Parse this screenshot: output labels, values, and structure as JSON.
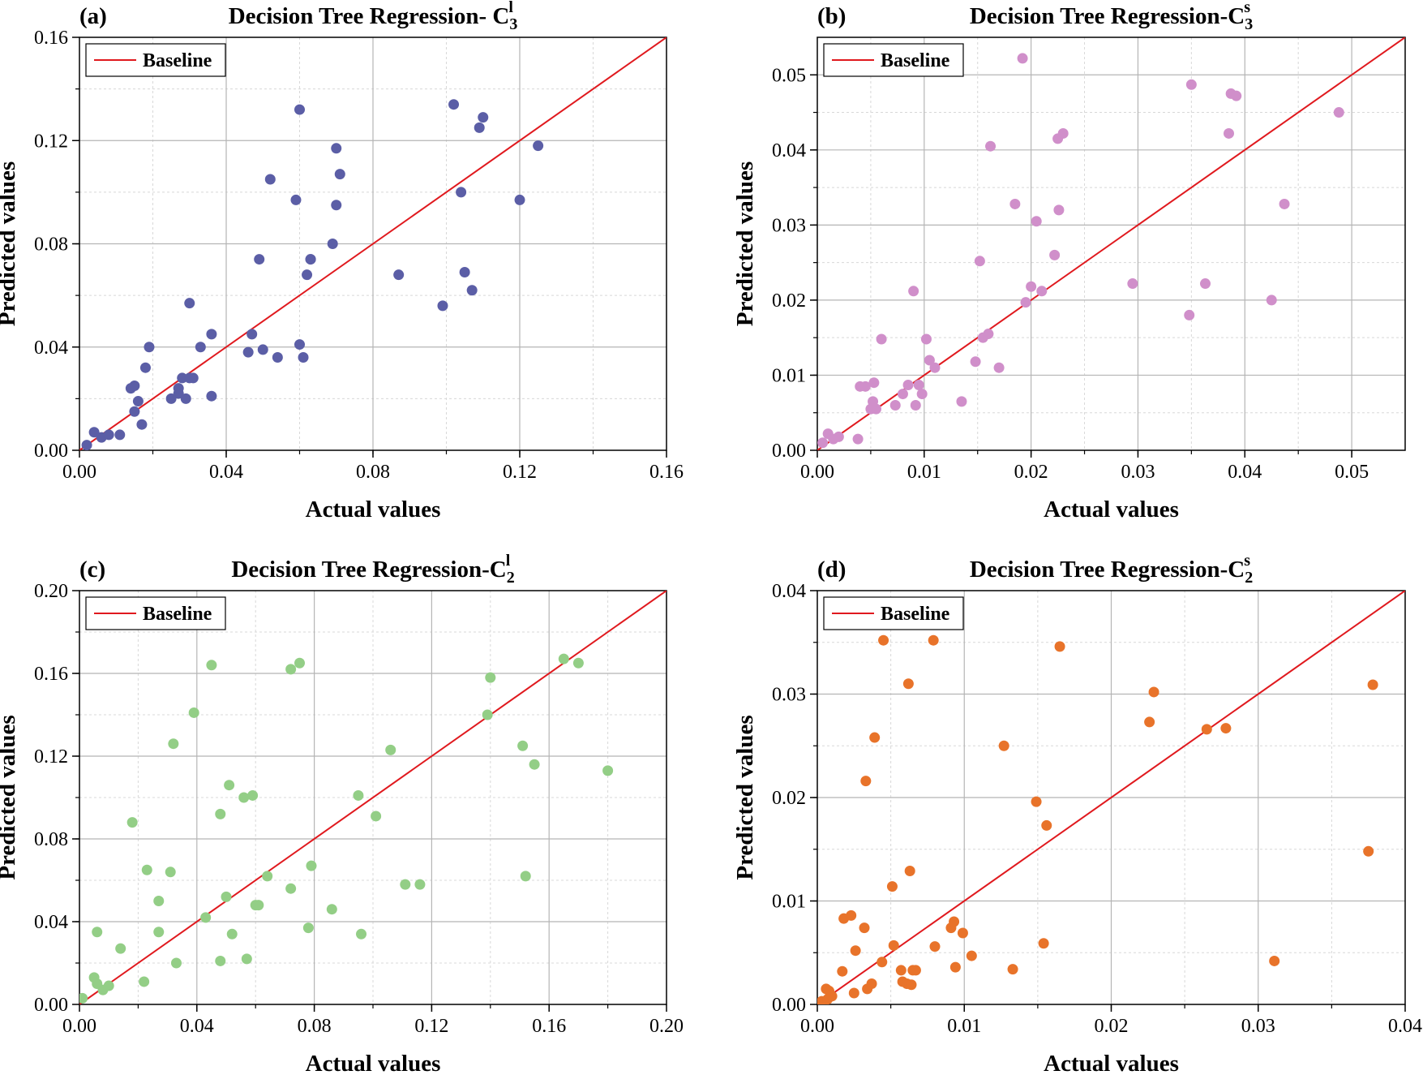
{
  "figure": {
    "colors": {
      "baseline": "#e0191e",
      "grid_major": "#b5b5b5",
      "grid_minor": "#d8d8d8",
      "axis": "#000000"
    }
  },
  "chart_data": [
    {
      "type": "scatter",
      "panel_label": "(a)",
      "title": "Decision Tree Regression- C",
      "title_sub": "3",
      "title_sup": "l",
      "xlabel": "Actual values",
      "ylabel": "Predicted values",
      "xlim": [
        0,
        0.16
      ],
      "ylim": [
        0,
        0.16
      ],
      "xticks": [
        0,
        0.04,
        0.08,
        0.12,
        0.16
      ],
      "yticks": [
        0,
        0.04,
        0.08,
        0.12,
        0.16
      ],
      "tick_labels_x": [
        "0.00",
        "0.04",
        "0.08",
        "0.12",
        "0.16"
      ],
      "tick_labels_y": [
        "0.00",
        "0.04",
        "0.08",
        "0.12",
        "0.16"
      ],
      "minor_step": 0.02,
      "grid": true,
      "legend": {
        "label": "Baseline",
        "position": "top-left"
      },
      "point_color": "#5b5ea6",
      "baseline": {
        "from": [
          0,
          0
        ],
        "to": [
          0.16,
          0.16
        ]
      },
      "x": [
        0.002,
        0.004,
        0.006,
        0.008,
        0.011,
        0.014,
        0.015,
        0.015,
        0.016,
        0.017,
        0.018,
        0.019,
        0.025,
        0.027,
        0.027,
        0.028,
        0.029,
        0.03,
        0.031,
        0.03,
        0.033,
        0.036,
        0.036,
        0.046,
        0.047,
        0.049,
        0.05,
        0.052,
        0.054,
        0.059,
        0.06,
        0.06,
        0.061,
        0.062,
        0.063,
        0.063,
        0.069,
        0.07,
        0.07,
        0.071,
        0.087,
        0.099,
        0.102,
        0.104,
        0.105,
        0.107,
        0.109,
        0.11,
        0.12,
        0.125
      ],
      "y": [
        0.002,
        0.007,
        0.005,
        0.006,
        0.006,
        0.024,
        0.015,
        0.025,
        0.019,
        0.01,
        0.032,
        0.04,
        0.02,
        0.022,
        0.024,
        0.028,
        0.02,
        0.057,
        0.028,
        0.028,
        0.04,
        0.021,
        0.045,
        0.038,
        0.045,
        0.074,
        0.039,
        0.105,
        0.036,
        0.097,
        0.041,
        0.132,
        0.036,
        0.068,
        0.074,
        0.074,
        0.08,
        0.095,
        0.117,
        0.107,
        0.068,
        0.056,
        0.134,
        0.1,
        0.069,
        0.062,
        0.125,
        0.129,
        0.097,
        0.118
      ]
    },
    {
      "type": "scatter",
      "panel_label": "(b)",
      "title": "Decision Tree Regression-C",
      "title_sub": "3",
      "title_sup": "s",
      "xlabel": "Actual values",
      "ylabel": "Predicted values",
      "xlim": [
        0,
        0.055
      ],
      "ylim": [
        0,
        0.055
      ],
      "xticks": [
        0,
        0.01,
        0.02,
        0.03,
        0.04,
        0.05
      ],
      "yticks": [
        0,
        0.01,
        0.02,
        0.03,
        0.04,
        0.05
      ],
      "tick_labels_x": [
        "0.00",
        "0.01",
        "0.02",
        "0.03",
        "0.04",
        "0.05"
      ],
      "tick_labels_y": [
        "0.00",
        "0.01",
        "0.02",
        "0.03",
        "0.04",
        "0.05"
      ],
      "minor_step": 0.005,
      "grid": true,
      "legend": {
        "label": "Baseline",
        "position": "top-left"
      },
      "point_color": "#d08fca",
      "baseline": {
        "from": [
          0,
          0
        ],
        "to": [
          0.055,
          0.055
        ]
      },
      "x": [
        0.0005,
        0.001,
        0.0015,
        0.002,
        0.0038,
        0.004,
        0.0045,
        0.005,
        0.0052,
        0.0053,
        0.0055,
        0.006,
        0.0073,
        0.008,
        0.0085,
        0.009,
        0.0092,
        0.0095,
        0.0098,
        0.0102,
        0.0105,
        0.011,
        0.0135,
        0.0148,
        0.0152,
        0.0155,
        0.016,
        0.0162,
        0.017,
        0.0185,
        0.0192,
        0.0195,
        0.02,
        0.0205,
        0.021,
        0.0222,
        0.0225,
        0.0226,
        0.023,
        0.0295,
        0.0348,
        0.035,
        0.0363,
        0.0385,
        0.0387,
        0.0392,
        0.0425,
        0.0437,
        0.0488
      ],
      "y": [
        0.001,
        0.0022,
        0.0015,
        0.0018,
        0.0015,
        0.0085,
        0.0085,
        0.0055,
        0.0065,
        0.009,
        0.0055,
        0.0148,
        0.006,
        0.0075,
        0.0087,
        0.0212,
        0.006,
        0.0087,
        0.0075,
        0.0148,
        0.012,
        0.011,
        0.0065,
        0.0118,
        0.0252,
        0.015,
        0.0155,
        0.0405,
        0.011,
        0.0328,
        0.0522,
        0.0197,
        0.0218,
        0.0305,
        0.0212,
        0.026,
        0.0415,
        0.032,
        0.0422,
        0.0222,
        0.018,
        0.0487,
        0.0222,
        0.0422,
        0.0475,
        0.0472,
        0.02,
        0.0328,
        0.045
      ]
    },
    {
      "type": "scatter",
      "panel_label": "(c)",
      "title": "Decision Tree Regression-C",
      "title_sub": "2",
      "title_sup": "l",
      "xlabel": "Actual values",
      "ylabel": "Predicted values",
      "xlim": [
        0,
        0.2
      ],
      "ylim": [
        0,
        0.2
      ],
      "xticks": [
        0,
        0.04,
        0.08,
        0.12,
        0.16,
        0.2
      ],
      "yticks": [
        0,
        0.04,
        0.08,
        0.12,
        0.16,
        0.2
      ],
      "tick_labels_x": [
        "0.00",
        "0.04",
        "0.08",
        "0.12",
        "0.16",
        "0.20"
      ],
      "tick_labels_y": [
        "0.00",
        "0.04",
        "0.08",
        "0.12",
        "0.16",
        "0.20"
      ],
      "minor_step": 0.02,
      "grid": true,
      "legend": {
        "label": "Baseline",
        "position": "top-left"
      },
      "point_color": "#93ce86",
      "baseline": {
        "from": [
          0,
          0
        ],
        "to": [
          0.2,
          0.2
        ]
      },
      "x": [
        0.001,
        0.005,
        0.006,
        0.006,
        0.008,
        0.01,
        0.014,
        0.018,
        0.022,
        0.023,
        0.027,
        0.027,
        0.031,
        0.032,
        0.033,
        0.039,
        0.043,
        0.045,
        0.048,
        0.048,
        0.05,
        0.051,
        0.052,
        0.056,
        0.057,
        0.059,
        0.06,
        0.061,
        0.064,
        0.072,
        0.072,
        0.075,
        0.078,
        0.079,
        0.086,
        0.095,
        0.096,
        0.101,
        0.106,
        0.111,
        0.116,
        0.139,
        0.14,
        0.151,
        0.152,
        0.155,
        0.165,
        0.17,
        0.18
      ],
      "y": [
        0.003,
        0.013,
        0.01,
        0.035,
        0.007,
        0.009,
        0.027,
        0.088,
        0.011,
        0.065,
        0.05,
        0.035,
        0.064,
        0.126,
        0.02,
        0.141,
        0.042,
        0.164,
        0.092,
        0.021,
        0.052,
        0.106,
        0.034,
        0.1,
        0.022,
        0.101,
        0.048,
        0.048,
        0.062,
        0.056,
        0.162,
        0.165,
        0.037,
        0.067,
        0.046,
        0.101,
        0.034,
        0.091,
        0.123,
        0.058,
        0.058,
        0.14,
        0.158,
        0.125,
        0.062,
        0.116,
        0.167,
        0.165,
        0.113
      ]
    },
    {
      "type": "scatter",
      "panel_label": "(d)",
      "title": "Decision Tree Regression-C",
      "title_sub": "2",
      "title_sup": "s",
      "xlabel": "Actual values",
      "ylabel": "Predicted values",
      "xlim": [
        0,
        0.04
      ],
      "ylim": [
        0,
        0.04
      ],
      "xticks": [
        0,
        0.01,
        0.02,
        0.03,
        0.04
      ],
      "yticks": [
        0,
        0.01,
        0.02,
        0.03,
        0.04
      ],
      "tick_labels_x": [
        "0.00",
        "0.01",
        "0.02",
        "0.03",
        "0.04"
      ],
      "tick_labels_y": [
        "0.00",
        "0.01",
        "0.02",
        "0.03",
        "0.04"
      ],
      "minor_step": 0.005,
      "grid": true,
      "legend": {
        "label": "Baseline",
        "position": "top-left"
      },
      "point_color": "#e8732a",
      "baseline": {
        "from": [
          0,
          0
        ],
        "to": [
          0.04,
          0.04
        ]
      },
      "x": [
        0.0003,
        0.0006,
        0.0007,
        0.0008,
        0.001,
        0.0017,
        0.0018,
        0.0023,
        0.0025,
        0.0026,
        0.0032,
        0.0033,
        0.0034,
        0.0037,
        0.0039,
        0.0044,
        0.0045,
        0.0051,
        0.0052,
        0.0057,
        0.0058,
        0.0061,
        0.0062,
        0.0063,
        0.0064,
        0.0065,
        0.0067,
        0.0079,
        0.008,
        0.0091,
        0.0093,
        0.0094,
        0.0099,
        0.0105,
        0.0127,
        0.0133,
        0.0149,
        0.0154,
        0.0156,
        0.0165,
        0.0226,
        0.0229,
        0.0265,
        0.0278,
        0.0311,
        0.0375,
        0.0378
      ],
      "y": [
        0.0003,
        0.0015,
        0.0005,
        0.0013,
        0.0008,
        0.0032,
        0.0083,
        0.0086,
        0.0011,
        0.0052,
        0.0074,
        0.0216,
        0.0015,
        0.002,
        0.0258,
        0.0041,
        0.0352,
        0.0114,
        0.0057,
        0.0033,
        0.0022,
        0.002,
        0.031,
        0.0129,
        0.0019,
        0.0033,
        0.0033,
        0.0352,
        0.0056,
        0.0074,
        0.008,
        0.0036,
        0.0069,
        0.0047,
        0.025,
        0.0034,
        0.0196,
        0.0059,
        0.0173,
        0.0346,
        0.0273,
        0.0302,
        0.0266,
        0.0267,
        0.0042,
        0.0148,
        0.0309
      ]
    }
  ]
}
